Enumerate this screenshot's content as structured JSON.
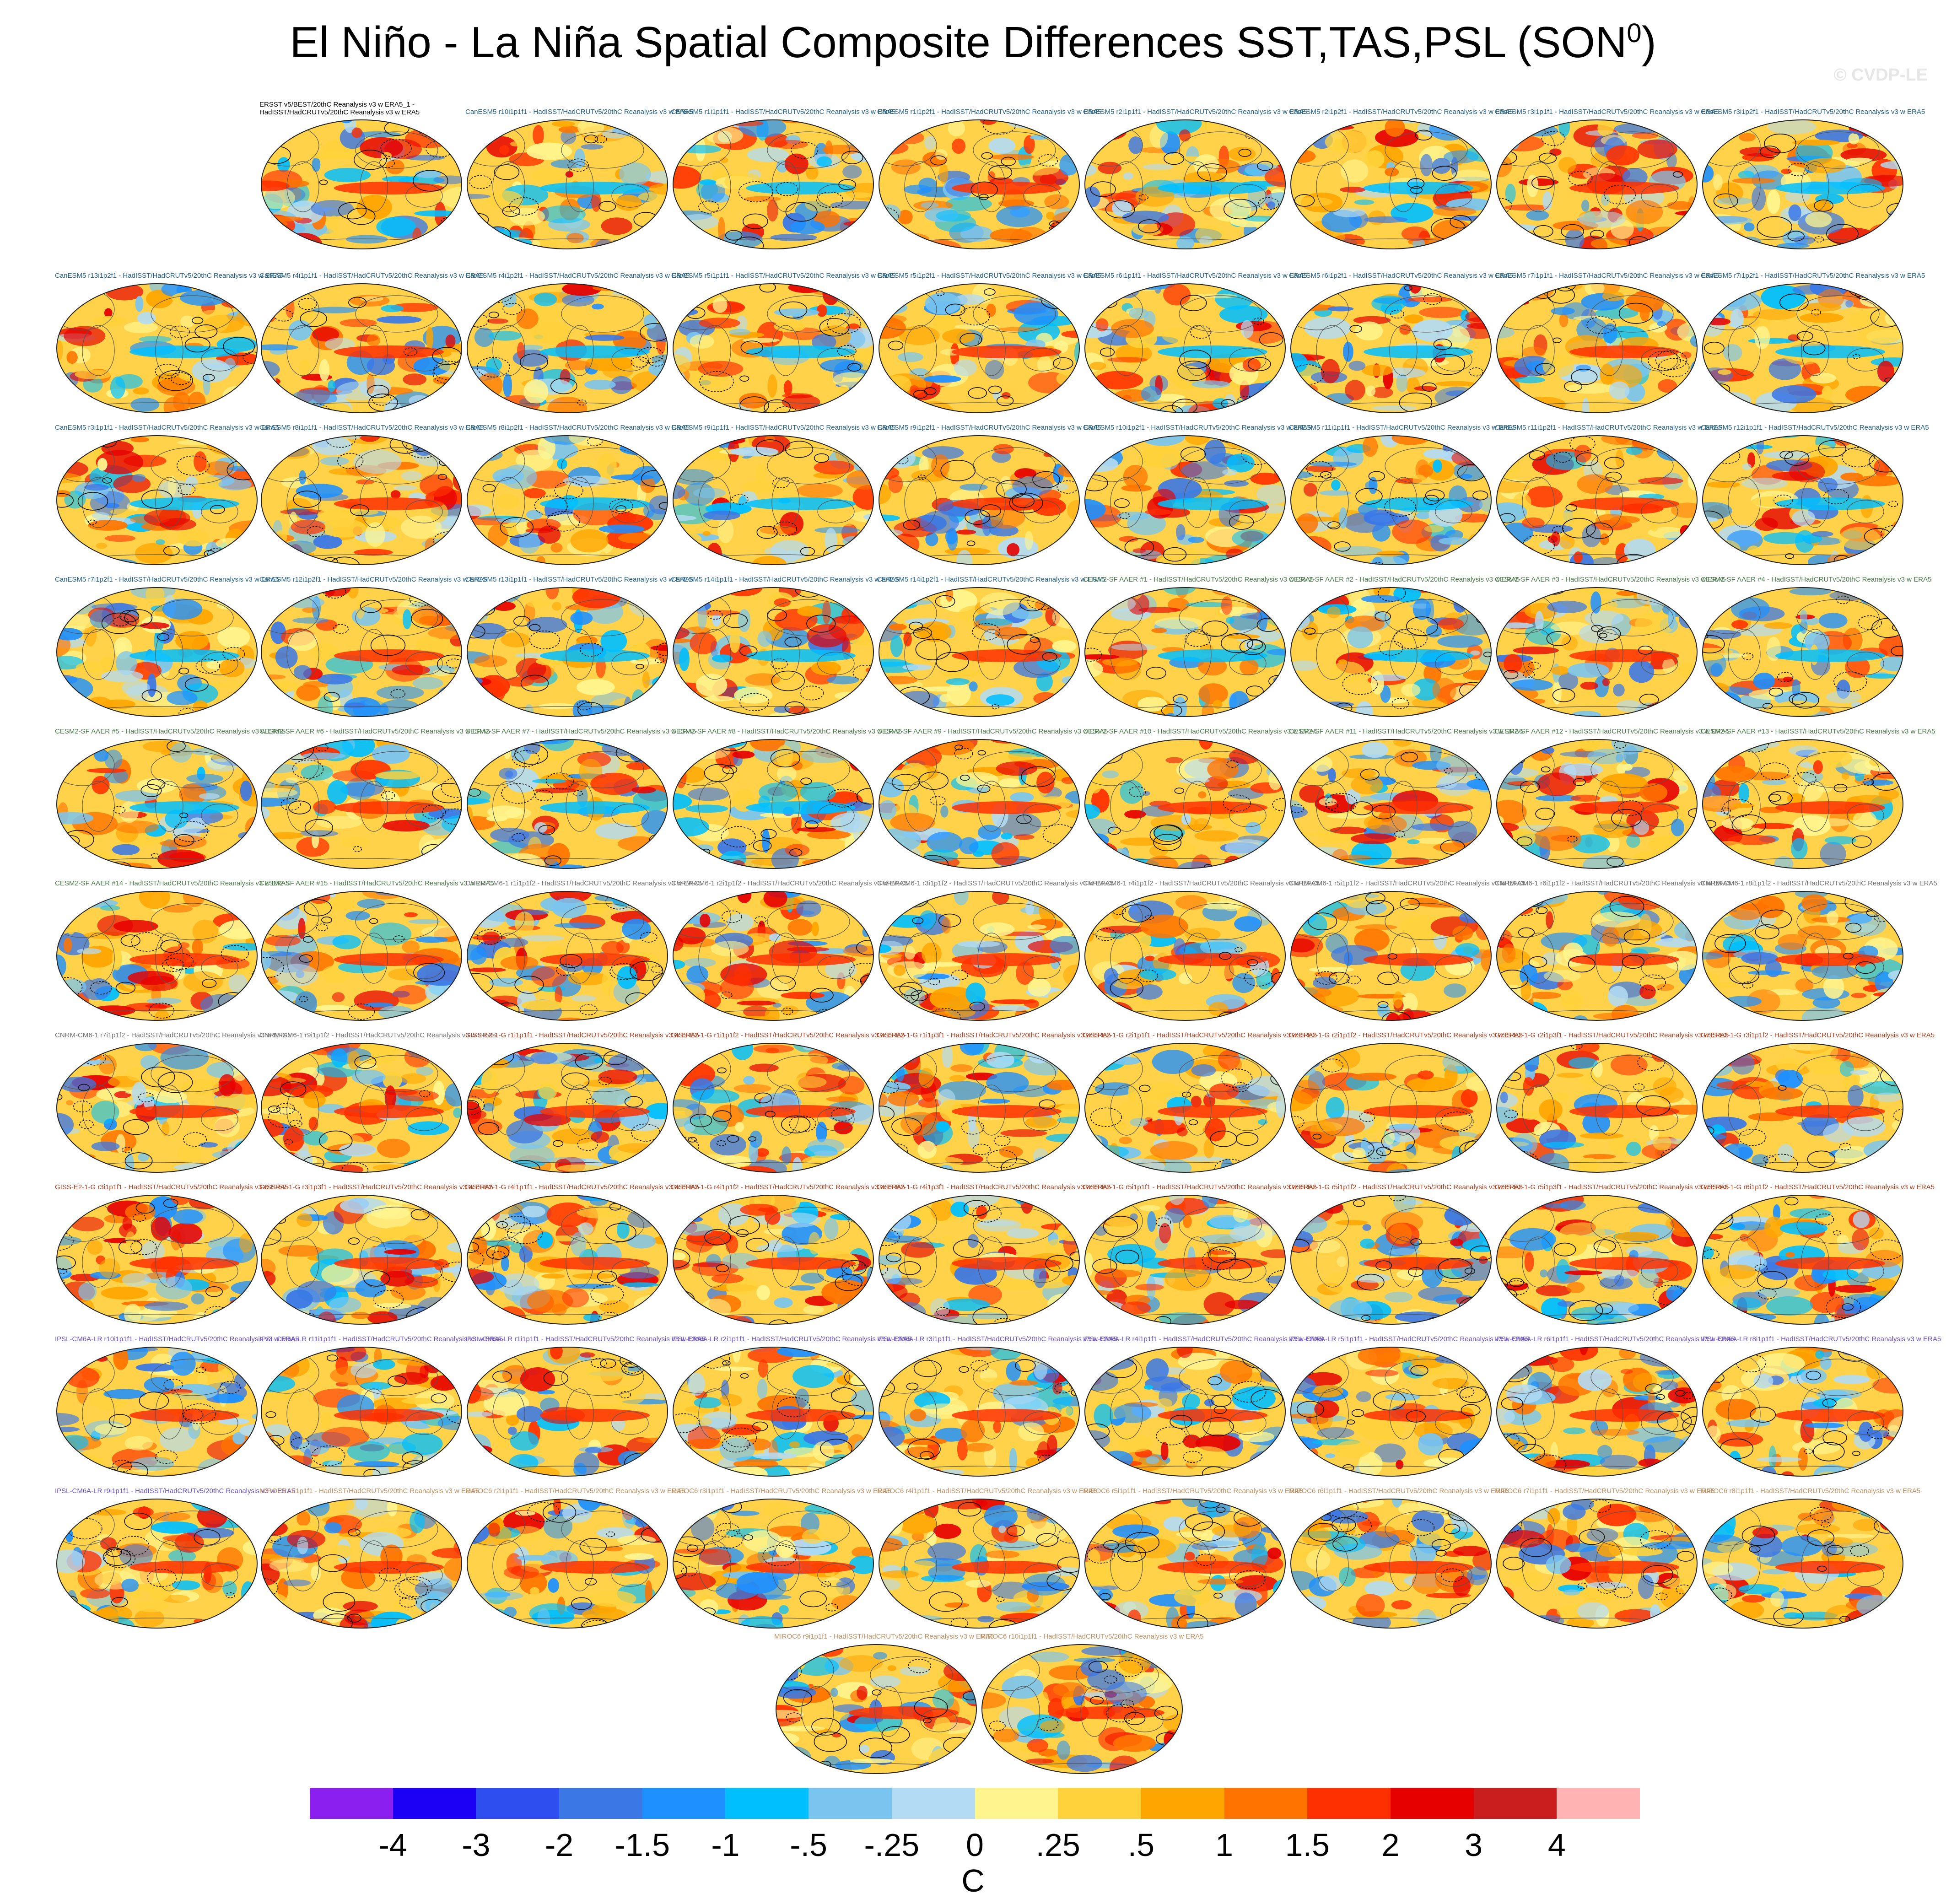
{
  "title": "El Niño - La Niña Spatial Composite Differences SST,TAS,PSL (SON",
  "title_sup": "0",
  "title_close": ")",
  "copyright": "© CVDP-LE",
  "panel_label_suffix": " - HadISST/HadCRUTv5/20thC Reanalysis v3 w ERA5",
  "observation_label_line1": "ERSST v5/BEST/20thC Reanalysis v3 w ERA5_1 -",
  "observation_label_line2": "HadISST/HadCRUTv5/20thC Reanalysis v3 w ERA5",
  "label_colors": {
    "obs": "#000000",
    "CanESM5": "#1f5f8b",
    "CESM2-SF AAER": "#4a7a4a",
    "CNRM-CM6-1": "#707070",
    "GISS-E2-1-G": "#a83a1a",
    "IPSL-CM6A-LR": "#6a4fc8",
    "MIROC6": "#c09060"
  },
  "rows": [
    [
      "obs",
      "CanESM5 r10i1p1f1",
      "CanESM5 r1i1p1f1",
      "CanESM5 r1i1p2f1",
      "CanESM5 r2i1p1f1",
      "CanESM5 r2i1p2f1",
      "CanESM5 r3i1p1f1",
      "CanESM5 r3i1p2f1"
    ],
    [
      "CanESM5 r13i1p2f1",
      "CanESM5 r4i1p1f1",
      "CanESM5 r4i1p2f1",
      "CanESM5 r5i1p1f1",
      "CanESM5 r5i1p2f1",
      "CanESM5 r6i1p1f1",
      "CanESM5 r6i1p2f1",
      "CanESM5 r7i1p1f1",
      "CanESM5 r7i1p2f1"
    ],
    [
      "CanESM5 r3i1p1f1",
      "CanESM5 r8i1p1f1",
      "CanESM5 r8i1p2f1",
      "CanESM5 r9i1p1f1",
      "CanESM5 r9i1p2f1",
      "CanESM5 r10i1p2f1",
      "CanESM5 r11i1p1f1",
      "CanESM5 r11i1p2f1",
      "CanESM5 r12i1p1f1"
    ],
    [
      "CanESM5 r7i1p2f1",
      "CanESM5 r12i1p2f1",
      "CanESM5 r13i1p1f1",
      "CanESM5 r14i1p1f1",
      "CanESM5 r14i1p2f1",
      "CESM2-SF AAER #1",
      "CESM2-SF AAER #2",
      "CESM2-SF AAER #3",
      "CESM2-SF AAER #4"
    ],
    [
      "CESM2-SF AAER #5",
      "CESM2-SF AAER #6",
      "CESM2-SF AAER #7",
      "CESM2-SF AAER #8",
      "CESM2-SF AAER #9",
      "CESM2-SF AAER #10",
      "CESM2-SF AAER #11",
      "CESM2-SF AAER #12",
      "CESM2-SF AAER #13"
    ],
    [
      "CESM2-SF AAER #14",
      "CESM2-SF AAER #15",
      "CNRM-CM6-1 r1i1p1f2",
      "CNRM-CM6-1 r2i1p1f2",
      "CNRM-CM6-1 r3i1p1f2",
      "CNRM-CM6-1 r4i1p1f2",
      "CNRM-CM6-1 r5i1p1f2",
      "CNRM-CM6-1 r6i1p1f2",
      "CNRM-CM6-1 r8i1p1f2"
    ],
    [
      "CNRM-CM6-1 r7i1p1f2",
      "CNRM-CM6-1 r9i1p1f2",
      "GISS-E2-1-G r1i1p1f1",
      "GISS-E2-1-G r1i1p1f2",
      "GISS-E2-1-G r1i1p3f1",
      "GISS-E2-1-G r2i1p1f1",
      "GISS-E2-1-G r2i1p1f2",
      "GISS-E2-1-G r2i1p3f1",
      "GISS-E2-1-G r3i1p1f2"
    ],
    [
      "GISS-E2-1-G r3i1p1f1",
      "GISS-E2-1-G r3i1p3f1",
      "GISS-E2-1-G r4i1p1f1",
      "GISS-E2-1-G r4i1p1f2",
      "GISS-E2-1-G r4i1p3f1",
      "GISS-E2-1-G r5i1p1f1",
      "GISS-E2-1-G r5i1p1f2",
      "GISS-E2-1-G r5i1p3f1",
      "GISS-E2-1-G r6i1p1f2"
    ],
    [
      "IPSL-CM6A-LR r10i1p1f1",
      "IPSL-CM6A-LR r11i1p1f1",
      "IPSL-CM6A-LR r1i1p1f1",
      "IPSL-CM6A-LR r2i1p1f1",
      "IPSL-CM6A-LR r3i1p1f1",
      "IPSL-CM6A-LR r4i1p1f1",
      "IPSL-CM6A-LR r5i1p1f1",
      "IPSL-CM6A-LR r6i1p1f1",
      "IPSL-CM6A-LR r8i1p1f1"
    ],
    [
      "IPSL-CM6A-LR r9i1p1f1",
      "MIROC6 r1i1p1f1",
      "MIROC6 r2i1p1f1",
      "MIROC6 r3i1p1f1",
      "MIROC6 r4i1p1f1",
      "MIROC6 r5i1p1f1",
      "MIROC6 r6i1p1f1",
      "MIROC6 r7i1p1f1",
      "MIROC6 r8i1p1f1"
    ],
    [
      "MIROC6 r9i1p1f1",
      "MIROC6 r10i1p1f1"
    ]
  ],
  "colorbar": {
    "colors": [
      "#8b1ff0",
      "#1c00f5",
      "#2e4ef0",
      "#3b78e6",
      "#1e90ff",
      "#00bfff",
      "#7ac5f0",
      "#b3dbf3",
      "#fff58f",
      "#ffd23b",
      "#ffa500",
      "#ff7400",
      "#ff3000",
      "#e60000",
      "#c81e1e",
      "#ffb3b3"
    ],
    "ticks": [
      "-4",
      "-3",
      "-2",
      "-1.5",
      "-1",
      "-.5",
      "-.25",
      "0",
      ".25",
      ".5",
      "1",
      "1.5",
      "2",
      "3",
      "4"
    ],
    "units": "C"
  },
  "map_style": {
    "ocean_base": "#ffd24a",
    "land_base": "#eeeeee",
    "outline": "#222222"
  }
}
